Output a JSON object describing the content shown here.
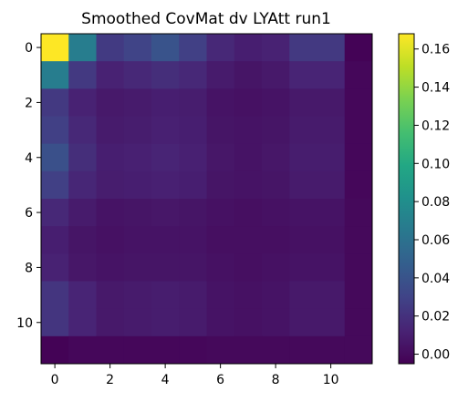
{
  "chart_data": {
    "type": "heatmap",
    "title": "Smoothed CovMat dv LYAtt run1",
    "xlabel": "",
    "ylabel": "",
    "rows": 12,
    "cols": 12,
    "x_ticks": [
      0,
      2,
      4,
      6,
      8,
      10
    ],
    "y_ticks": [
      0,
      2,
      4,
      6,
      8,
      10
    ],
    "colorbar": {
      "min": -0.005,
      "max": 0.168,
      "ticks": [
        0.0,
        0.02,
        0.04,
        0.06,
        0.08,
        0.1,
        0.12,
        0.14,
        0.16
      ],
      "tick_labels": [
        "0.00",
        "0.02",
        "0.04",
        "0.06",
        "0.08",
        "0.10",
        "0.12",
        "0.14",
        "0.16"
      ],
      "colormap": "viridis"
    },
    "values": [
      [
        0.168,
        0.068,
        0.025,
        0.03,
        0.04,
        0.028,
        0.015,
        0.01,
        0.012,
        0.024,
        0.024,
        -0.004
      ],
      [
        0.068,
        0.024,
        0.012,
        0.015,
        0.018,
        0.015,
        0.008,
        0.005,
        0.007,
        0.013,
        0.013,
        -0.002
      ],
      [
        0.024,
        0.012,
        0.007,
        0.008,
        0.01,
        0.009,
        0.004,
        0.003,
        0.004,
        0.007,
        0.007,
        -0.002
      ],
      [
        0.028,
        0.015,
        0.008,
        0.009,
        0.011,
        0.01,
        0.005,
        0.004,
        0.005,
        0.008,
        0.008,
        -0.002
      ],
      [
        0.038,
        0.018,
        0.01,
        0.011,
        0.013,
        0.011,
        0.006,
        0.004,
        0.006,
        0.009,
        0.009,
        -0.002
      ],
      [
        0.028,
        0.014,
        0.009,
        0.01,
        0.011,
        0.01,
        0.005,
        0.004,
        0.005,
        0.008,
        0.008,
        -0.002
      ],
      [
        0.015,
        0.008,
        0.004,
        0.005,
        0.006,
        0.005,
        0.003,
        0.002,
        0.003,
        0.004,
        0.004,
        -0.001
      ],
      [
        0.01,
        0.005,
        0.003,
        0.004,
        0.004,
        0.004,
        0.002,
        0.002,
        0.002,
        0.003,
        0.003,
        -0.001
      ],
      [
        0.012,
        0.006,
        0.004,
        0.005,
        0.005,
        0.005,
        0.003,
        0.002,
        0.003,
        0.004,
        0.004,
        -0.001
      ],
      [
        0.022,
        0.013,
        0.007,
        0.008,
        0.009,
        0.008,
        0.004,
        0.003,
        0.004,
        0.007,
        0.007,
        -0.001
      ],
      [
        0.022,
        0.013,
        0.007,
        0.008,
        0.009,
        0.008,
        0.004,
        0.003,
        0.004,
        0.007,
        0.007,
        -0.001
      ],
      [
        -0.004,
        -0.002,
        -0.002,
        -0.002,
        -0.002,
        -0.002,
        -0.001,
        -0.001,
        -0.001,
        -0.001,
        -0.001,
        -0.001
      ]
    ]
  }
}
